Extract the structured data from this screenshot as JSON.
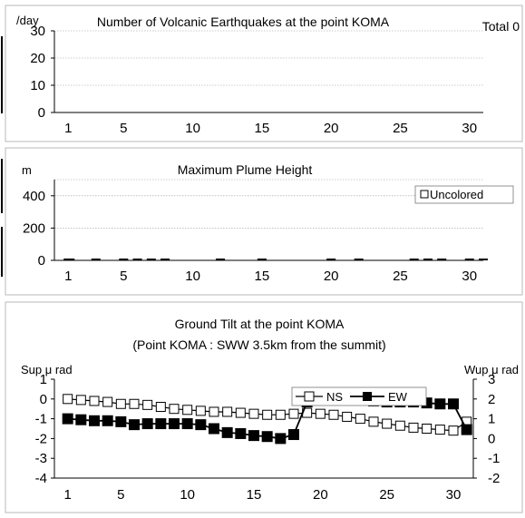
{
  "chart_data": [
    {
      "type": "bar",
      "title": "Number of Volcanic Earthquakes at the point KOMA",
      "total_label": "Total 0",
      "ylabel": "/day",
      "ylim": [
        0,
        30
      ],
      "yticks": [
        0,
        10,
        20,
        30
      ],
      "xlim": [
        0,
        31
      ],
      "xticks": [
        1,
        5,
        10,
        15,
        20,
        25,
        30
      ],
      "grid": true,
      "x": [
        1,
        2,
        3,
        4,
        5,
        6,
        7,
        8,
        9,
        10,
        11,
        12,
        13,
        14,
        15,
        16,
        17,
        18,
        19,
        20,
        21,
        22,
        23,
        24,
        25,
        26,
        27,
        28,
        29,
        30,
        31
      ],
      "values": [
        0,
        0,
        0,
        0,
        0,
        0,
        0,
        0,
        0,
        0,
        0,
        0,
        0,
        0,
        0,
        0,
        0,
        0,
        0,
        0,
        0,
        0,
        0,
        0,
        0,
        0,
        0,
        0,
        0,
        0,
        0
      ]
    },
    {
      "type": "bar",
      "title": "Maximum Plume Height",
      "ylabel": "m",
      "ylim": [
        0,
        500
      ],
      "yticks": [
        0,
        200,
        400
      ],
      "xlim": [
        0,
        31
      ],
      "xticks": [
        1,
        5,
        10,
        15,
        20,
        25,
        30
      ],
      "grid": true,
      "legend": {
        "position": "top-right",
        "entries": [
          "Uncolored"
        ]
      },
      "series": [
        {
          "name": "Uncolored",
          "x": [
            1,
            3,
            5,
            6,
            7,
            8,
            12,
            15,
            20,
            22,
            26,
            27,
            28,
            30,
            31
          ],
          "values": [
            0,
            0,
            0,
            0,
            0,
            0,
            0,
            0,
            0,
            0,
            0,
            0,
            0,
            0,
            0
          ]
        }
      ]
    },
    {
      "type": "line",
      "title": "Ground Tilt at the point KOMA",
      "subtitle": "(Point KOMA : SWW 3.5km from the summit)",
      "ylabel_left": "Sup μ rad",
      "ylabel_right": "Wup μ rad",
      "ylim_left": [
        -4,
        1
      ],
      "yticks_left": [
        1,
        0,
        -1,
        -2,
        -3,
        -4
      ],
      "ylim_right": [
        -2,
        3
      ],
      "yticks_right": [
        3,
        2,
        1,
        0,
        -1,
        -2
      ],
      "xlim": [
        0,
        31.5
      ],
      "xticks": [
        1,
        5,
        10,
        15,
        20,
        25,
        30
      ],
      "grid": false,
      "legend": {
        "position": "top-right",
        "entries": [
          "NS",
          "EW"
        ]
      },
      "series": [
        {
          "name": "NS",
          "axis": "left",
          "marker": "open-square",
          "x": [
            1,
            2,
            3,
            4,
            5,
            6,
            7,
            8,
            9,
            10,
            11,
            12,
            13,
            14,
            15,
            16,
            17,
            18,
            19,
            20,
            21,
            22,
            23,
            24,
            25,
            26,
            27,
            28,
            29,
            30,
            31
          ],
          "values": [
            0,
            -0.05,
            -0.1,
            -0.15,
            -0.25,
            -0.25,
            -0.3,
            -0.4,
            -0.5,
            -0.55,
            -0.6,
            -0.65,
            -0.65,
            -0.7,
            -0.75,
            -0.8,
            -0.8,
            -0.75,
            -0.7,
            -0.75,
            -0.8,
            -0.9,
            -1.0,
            -1.15,
            -1.25,
            -1.35,
            -1.45,
            -1.5,
            -1.55,
            -1.6,
            -1.15
          ]
        },
        {
          "name": "EW",
          "axis": "right",
          "marker": "filled-square",
          "x": [
            1,
            2,
            3,
            4,
            5,
            6,
            7,
            8,
            9,
            10,
            11,
            12,
            13,
            14,
            15,
            16,
            17,
            18,
            19,
            20,
            21,
            22,
            23,
            24,
            25,
            26,
            27,
            28,
            29,
            30,
            31
          ],
          "values": [
            1.0,
            0.95,
            0.9,
            0.9,
            0.85,
            0.7,
            0.75,
            0.75,
            0.75,
            0.75,
            0.7,
            0.5,
            0.3,
            0.25,
            0.15,
            0.1,
            0.0,
            0.2,
            1.85,
            1.95,
            1.95,
            1.95,
            1.95,
            1.9,
            1.85,
            1.85,
            1.85,
            1.8,
            1.75,
            1.75,
            0.45
          ]
        }
      ]
    }
  ]
}
